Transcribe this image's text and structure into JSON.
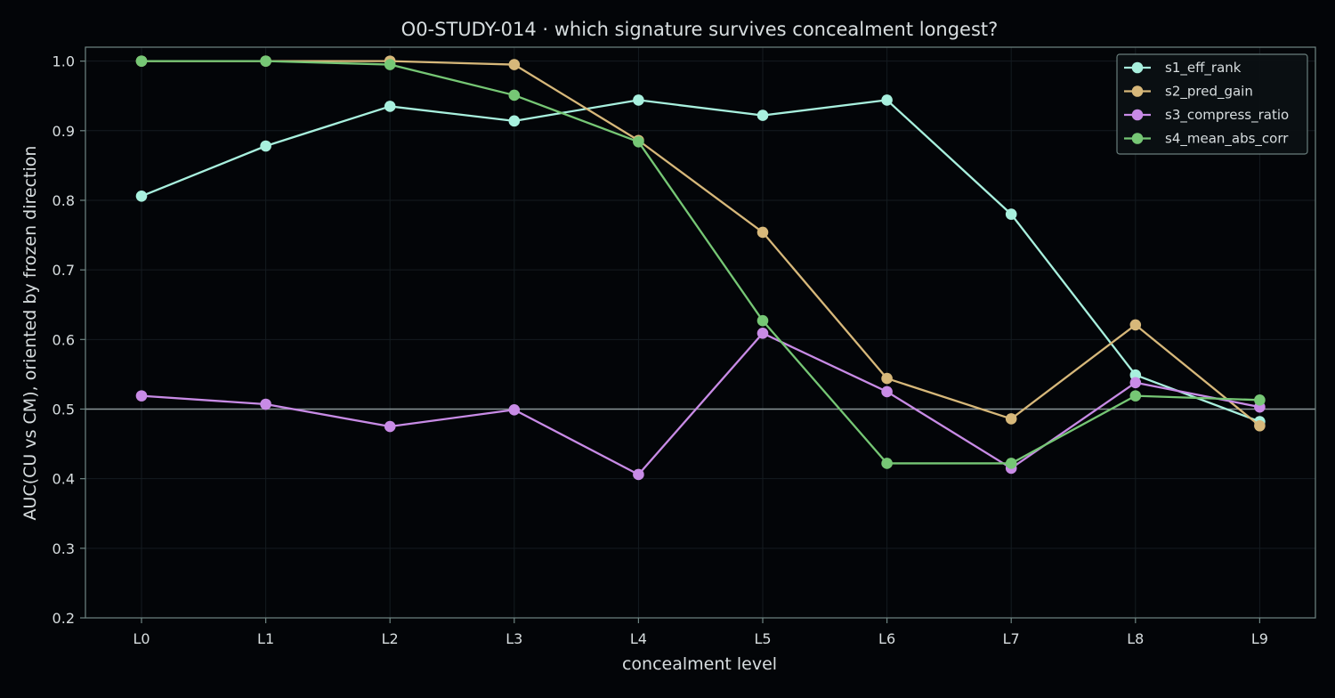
{
  "colors": {
    "background": "#030508",
    "frame": "#6f8583",
    "grid": "#141b20",
    "reference_line": "#8a9597",
    "text": "#d8dee0"
  },
  "chart_data": {
    "type": "line",
    "title": "O0-STUDY-014 · which signature survives concealment longest?",
    "xlabel": "concealment level",
    "ylabel": "AUC(CU vs CM), oriented by frozen direction",
    "categories": [
      "L0",
      "L1",
      "L2",
      "L3",
      "L4",
      "L5",
      "L6",
      "L7",
      "L8",
      "L9"
    ],
    "ylim": [
      0.2,
      1.02
    ],
    "yticks": [
      "0.2",
      "0.3",
      "0.4",
      "0.5",
      "0.6",
      "0.7",
      "0.8",
      "0.9",
      "1.0"
    ],
    "grid": true,
    "reference_line": 0.5,
    "legend_position": "top-right",
    "series": [
      {
        "name": "s1_eff_rank",
        "color": "#a8f0de",
        "values": [
          0.806,
          0.878,
          0.935,
          0.914,
          0.944,
          0.922,
          0.944,
          0.78,
          0.549,
          0.482
        ]
      },
      {
        "name": "s2_pred_gain",
        "color": "#d7b87a",
        "values": [
          1.0,
          1.0,
          1.0,
          0.995,
          0.886,
          0.754,
          0.544,
          0.486,
          0.621,
          0.476
        ]
      },
      {
        "name": "s3_compress_ratio",
        "color": "#c88be6",
        "values": [
          0.519,
          0.507,
          0.475,
          0.499,
          0.406,
          0.609,
          0.525,
          0.415,
          0.538,
          0.503
        ]
      },
      {
        "name": "s4_mean_abs_corr",
        "color": "#76c775",
        "values": [
          1.0,
          1.0,
          0.995,
          0.951,
          0.884,
          0.627,
          0.422,
          0.422,
          0.519,
          0.513
        ]
      }
    ]
  }
}
